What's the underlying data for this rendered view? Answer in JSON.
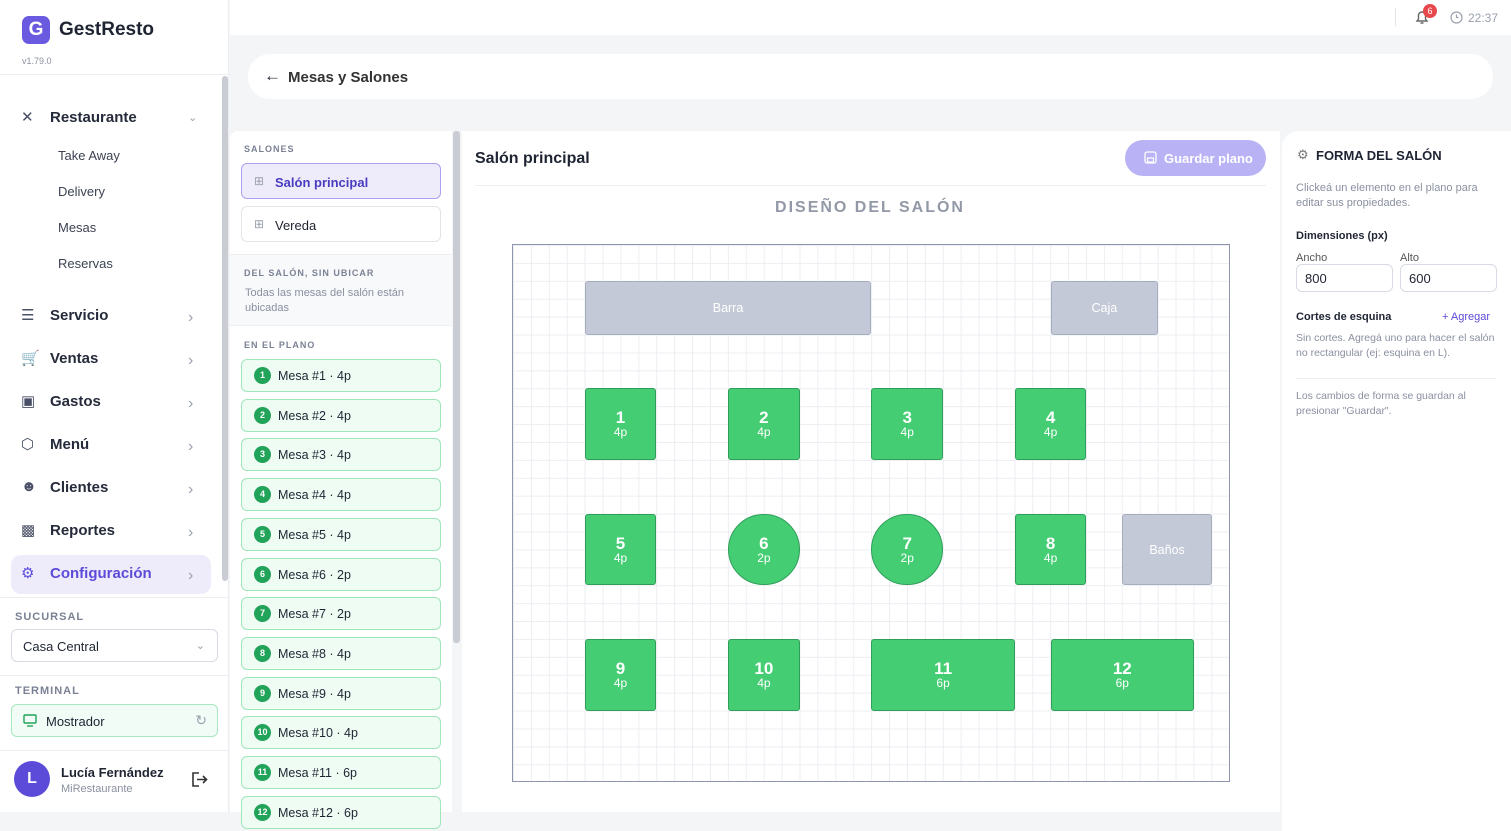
{
  "sidebar": {
    "logo": "G",
    "brand": "GestResto",
    "version": "v1.79.0",
    "nav": [
      {
        "label": "Restaurante",
        "children": [
          "Take Away",
          "Delivery",
          "Mesas",
          "Reservas"
        ]
      },
      {
        "label": "Servicio"
      },
      {
        "label": "Ventas"
      },
      {
        "label": "Gastos"
      },
      {
        "label": "Menú"
      },
      {
        "label": "Clientes"
      },
      {
        "label": "Reportes"
      },
      {
        "label": "Configuración"
      }
    ],
    "branch_label": "SUCURSAL",
    "branch": "Casa Central",
    "terminal_label": "TERMINAL",
    "terminal": "Mostrador",
    "user": {
      "initial": "L",
      "name": "Lucía Fernández",
      "org": "MiRestaurante"
    }
  },
  "topbar": {
    "notifications": 6,
    "time": "22:37"
  },
  "header": {
    "title": "Mesas y Salones"
  },
  "rooms_panel": {
    "rooms_label": "SALONES",
    "rooms": [
      "Salón principal",
      "Vereda"
    ],
    "unplaced_label": "DEL SALÓN, SIN UBICAR",
    "unplaced_text": "Todas las mesas del salón están ubicadas",
    "placed_label": "EN EL PLANO",
    "tables": [
      {
        "number": 1,
        "label": "Mesa #1 · 4p"
      },
      {
        "number": 2,
        "label": "Mesa #2 · 4p"
      },
      {
        "number": 3,
        "label": "Mesa #3 · 4p"
      },
      {
        "number": 4,
        "label": "Mesa #4 · 4p"
      },
      {
        "number": 5,
        "label": "Mesa #5 · 4p"
      },
      {
        "number": 6,
        "label": "Mesa #6 · 2p"
      },
      {
        "number": 7,
        "label": "Mesa #7 · 2p"
      },
      {
        "number": 8,
        "label": "Mesa #8 · 4p"
      },
      {
        "number": 9,
        "label": "Mesa #9 · 4p"
      },
      {
        "number": 10,
        "label": "Mesa #10 · 4p"
      },
      {
        "number": 11,
        "label": "Mesa #11 · 6p"
      },
      {
        "number": 12,
        "label": "Mesa #12 · 6p"
      }
    ]
  },
  "editor": {
    "room": "Salón principal",
    "save": "Guardar plano",
    "canvas_title": "DISEÑO DEL SALÓN",
    "elements": [
      "Barra",
      "Caja",
      "Baños"
    ],
    "tables": [
      {
        "number": 1,
        "seats": "4p"
      },
      {
        "number": 2,
        "seats": "4p"
      },
      {
        "number": 3,
        "seats": "4p"
      },
      {
        "number": 4,
        "seats": "4p"
      },
      {
        "number": 5,
        "seats": "4p"
      },
      {
        "number": 6,
        "seats": "2p"
      },
      {
        "number": 7,
        "seats": "2p"
      },
      {
        "number": 8,
        "seats": "4p"
      },
      {
        "number": 9,
        "seats": "4p"
      },
      {
        "number": 10,
        "seats": "4p"
      },
      {
        "number": 11,
        "seats": "6p"
      },
      {
        "number": 12,
        "seats": "6p"
      }
    ]
  },
  "properties": {
    "title": "FORMA DEL SALÓN",
    "hint": "Clickeá un elemento en el plano para editar sus propiedades.",
    "dimensions_label": "Dimensiones (px)",
    "width_label": "Ancho",
    "width": 800,
    "height_label": "Alto",
    "height": 600,
    "corners_label": "Cortes de esquina",
    "add": "+ Agregar",
    "corners_hint": "Sin cortes. Agregá uno para hacer el salón no rectangular (ej: esquina en L).",
    "save_hint": "Los cambios de forma se guardan al presionar \"Guardar\"."
  }
}
